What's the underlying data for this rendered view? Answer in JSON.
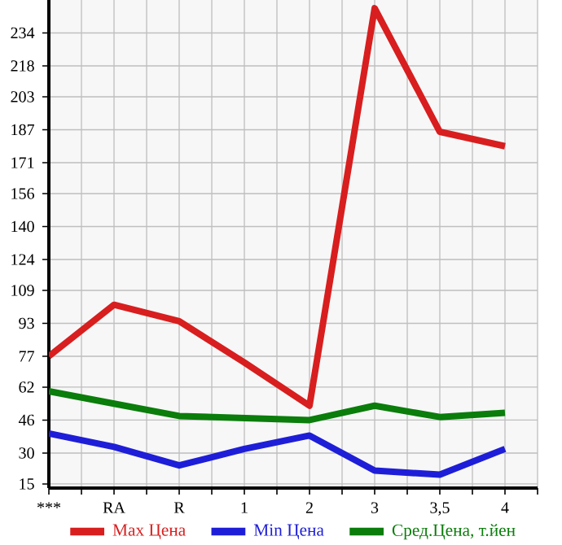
{
  "chart_data": {
    "type": "line",
    "categories": [
      "***",
      "RA",
      "R",
      "1",
      "2",
      "3",
      "3,5",
      "4"
    ],
    "series": [
      {
        "name": "Max Цена",
        "color": "#d81e1e",
        "values": [
          77,
          102,
          94,
          74,
          53,
          246,
          186,
          179
        ]
      },
      {
        "name": "Min Цена",
        "color": "#1e1ed8",
        "values": [
          39.5,
          33,
          24,
          32,
          38.5,
          21.5,
          19.5,
          32
        ]
      },
      {
        "name": "Сред.Цена, т.йен",
        "color": "#0a7d0a",
        "values": [
          60,
          54,
          48,
          47,
          46,
          53,
          47.5,
          49.5
        ]
      }
    ],
    "ylim": [
      13,
      250
    ],
    "yticks": [
      15,
      30,
      46,
      62,
      77,
      93,
      109,
      124,
      140,
      156,
      171,
      187,
      203,
      218,
      234
    ],
    "grid": true,
    "legend": "bottom",
    "marker": "none",
    "line_style": "solid"
  }
}
